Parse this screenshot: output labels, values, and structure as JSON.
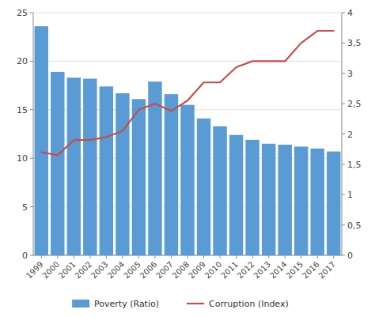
{
  "chart_data": {
    "type": "bar",
    "categories": [
      "1999",
      "2000",
      "2001",
      "2002",
      "2003",
      "2004",
      "2005",
      "2006",
      "2007",
      "2008",
      "2009",
      "2010",
      "2011",
      "2012",
      "2013",
      "2014",
      "2015",
      "2016",
      "2017"
    ],
    "series": [
      {
        "name": "Poverty (Ratio)",
        "type": "bar",
        "color": "#5B9BD5",
        "values": [
          23.6,
          18.9,
          18.3,
          18.2,
          17.4,
          16.7,
          16.1,
          17.9,
          16.6,
          15.5,
          14.1,
          13.3,
          12.4,
          11.9,
          11.5,
          11.4,
          11.2,
          11.0,
          10.7
        ]
      },
      {
        "name": "Corruption (Index)",
        "type": "line",
        "color": "#C0504D",
        "axis": "y2",
        "values": [
          1.7,
          1.65,
          1.9,
          1.9,
          1.95,
          2.05,
          2.4,
          2.5,
          2.38,
          2.55,
          2.85,
          2.85,
          3.1,
          3.2,
          3.2,
          3.2,
          3.5,
          3.7,
          3.7
        ]
      }
    ],
    "ylim": [
      0,
      25
    ],
    "yticks": [
      0,
      5,
      10,
      15,
      20,
      25
    ],
    "y2lim": [
      0,
      4
    ],
    "y2ticks": [
      0,
      {
        "value": 0.5,
        "label": "0,5"
      },
      1,
      {
        "value": 1.5,
        "label": "1,5"
      },
      2,
      {
        "value": 2.5,
        "label": "2,5"
      },
      3,
      {
        "value": 3.5,
        "label": "3,5"
      },
      4
    ],
    "grid": true,
    "legend": "bottom"
  }
}
